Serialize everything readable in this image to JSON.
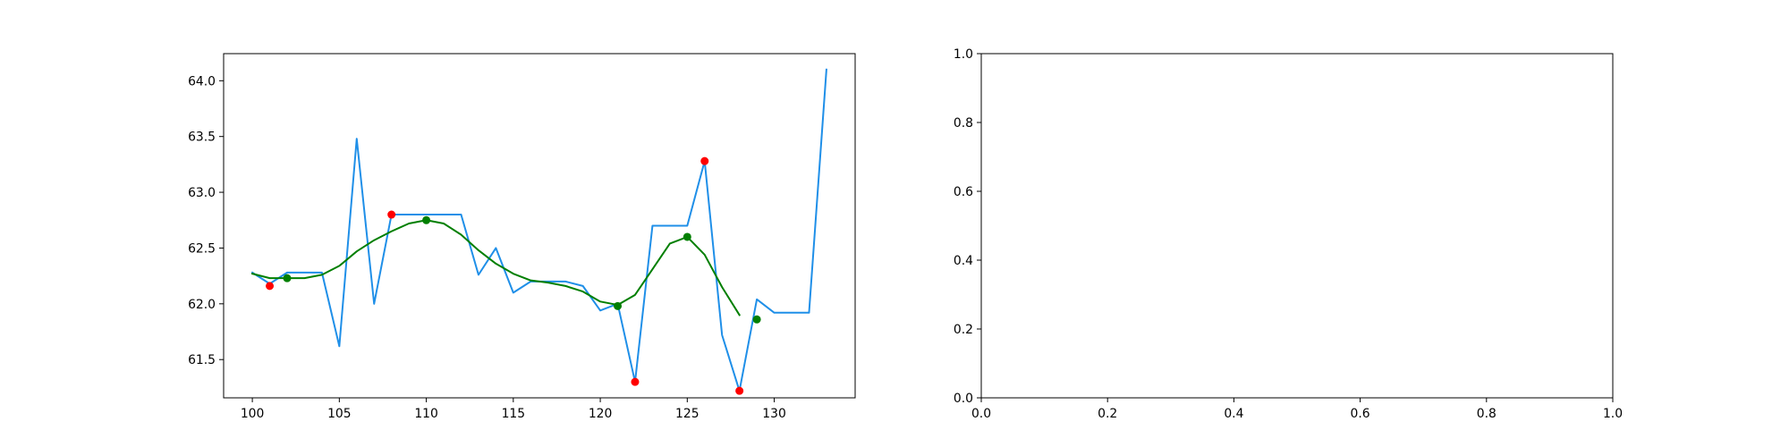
{
  "chart_data": [
    {
      "type": "line",
      "xlim": [
        98.35,
        134.65
      ],
      "ylim": [
        61.157,
        64.243
      ],
      "xticks": [
        100,
        105,
        110,
        115,
        120,
        125,
        130
      ],
      "xtick_labels": [
        "100",
        "105",
        "110",
        "115",
        "120",
        "125",
        "130"
      ],
      "yticks": [
        61.5,
        62.0,
        62.5,
        63.0,
        63.5,
        64.0
      ],
      "ytick_labels": [
        "61.5",
        "62.0",
        "62.5",
        "63.0",
        "63.5",
        "64.0"
      ],
      "grid": false,
      "series": [
        {
          "kind": "line",
          "color": "#1f8fe8",
          "x": [
            100,
            101,
            102,
            103,
            104,
            105,
            106,
            107,
            108,
            109,
            110,
            111,
            112,
            113,
            114,
            115,
            116,
            117,
            118,
            119,
            120,
            121,
            122,
            123,
            124,
            125,
            126,
            127,
            128,
            129,
            130,
            131,
            132,
            133
          ],
          "y": [
            62.28,
            62.18,
            62.28,
            62.28,
            62.28,
            61.62,
            63.48,
            62.0,
            62.8,
            62.8,
            62.8,
            62.8,
            62.8,
            62.26,
            62.5,
            62.1,
            62.2,
            62.2,
            62.2,
            62.16,
            61.94,
            62.0,
            61.3,
            62.7,
            62.7,
            62.7,
            63.28,
            61.72,
            61.22,
            62.04,
            61.92,
            61.92,
            61.92,
            64.1
          ]
        },
        {
          "kind": "line",
          "color": "#007f00",
          "x": [
            100,
            101,
            102,
            103,
            104,
            105,
            106,
            107,
            108,
            109,
            110,
            111,
            112,
            113,
            114,
            115,
            116,
            117,
            118,
            119,
            120,
            121,
            122,
            123,
            124,
            125,
            126,
            127,
            128
          ],
          "y": [
            62.27,
            62.23,
            62.23,
            62.23,
            62.26,
            62.34,
            62.47,
            62.57,
            62.65,
            62.72,
            62.75,
            62.72,
            62.62,
            62.48,
            62.36,
            62.27,
            62.21,
            62.19,
            62.16,
            62.11,
            62.02,
            61.99,
            62.08,
            62.31,
            62.54,
            62.6,
            62.44,
            62.15,
            61.9
          ]
        },
        {
          "kind": "scatter",
          "color": "#ff0000",
          "x": [
            101,
            108,
            122,
            126,
            128
          ],
          "y": [
            62.16,
            62.8,
            61.3,
            63.28,
            61.22
          ]
        },
        {
          "kind": "scatter",
          "color": "#007f00",
          "x": [
            102,
            110,
            121,
            125,
            129
          ],
          "y": [
            62.23,
            62.75,
            61.98,
            62.6,
            61.86
          ]
        }
      ]
    },
    {
      "type": "line",
      "xlim": [
        0.0,
        1.0
      ],
      "ylim": [
        0.0,
        1.0
      ],
      "xticks": [
        0.0,
        0.2,
        0.4,
        0.6,
        0.8,
        1.0
      ],
      "xtick_labels": [
        "0.0",
        "0.2",
        "0.4",
        "0.6",
        "0.8",
        "1.0"
      ],
      "yticks": [
        0.0,
        0.2,
        0.4,
        0.6,
        0.8,
        1.0
      ],
      "ytick_labels": [
        "0.0",
        "0.2",
        "0.4",
        "0.6",
        "0.8",
        "1.0"
      ],
      "grid": false,
      "series": []
    }
  ]
}
